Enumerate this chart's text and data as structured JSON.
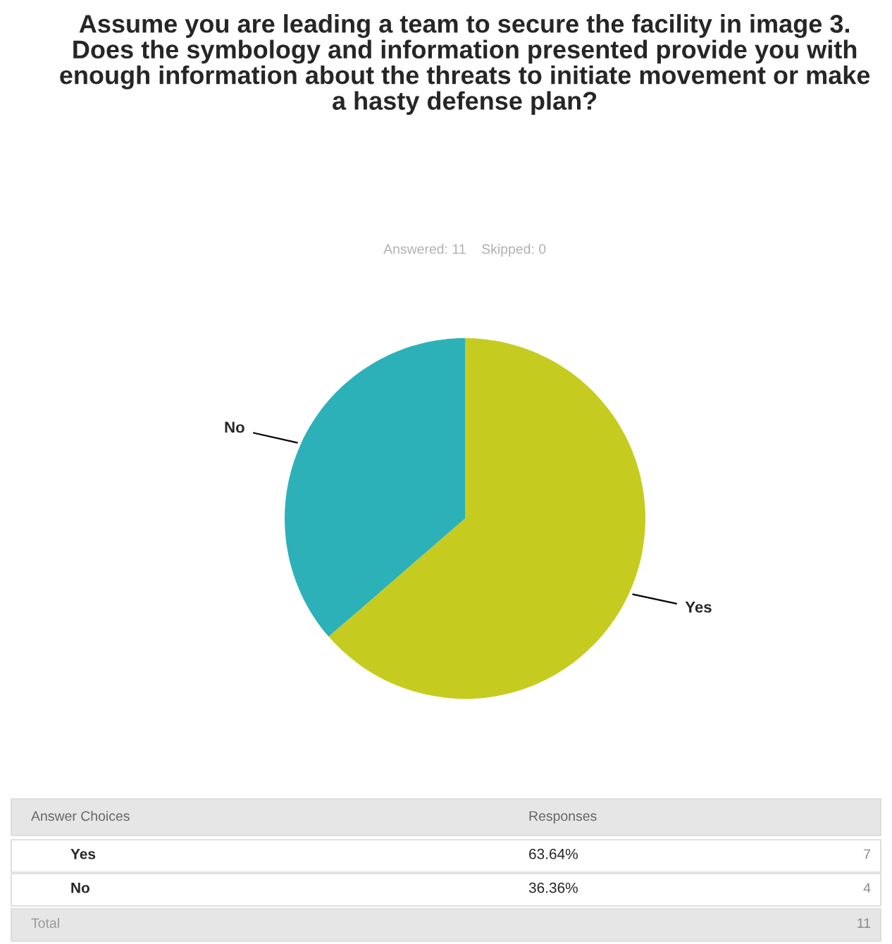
{
  "chart_data": {
    "type": "pie",
    "title": "Assume you are leading a team to secure the facility in image 3. Does the symbology and information presented provide you with enough information about the threats to initiate movement or make a hasty defense plan?",
    "subtitle": "Answered: 11    Skipped: 0",
    "categories": [
      "Yes",
      "No"
    ],
    "values": [
      63.64,
      36.36
    ],
    "colors": [
      "#c6cc1f",
      "#2cb1b9"
    ],
    "annotations": [
      "Answer Choices",
      "Responses",
      "63.64%",
      "36.36%",
      "7",
      "4",
      "Total",
      "11"
    ]
  }
}
